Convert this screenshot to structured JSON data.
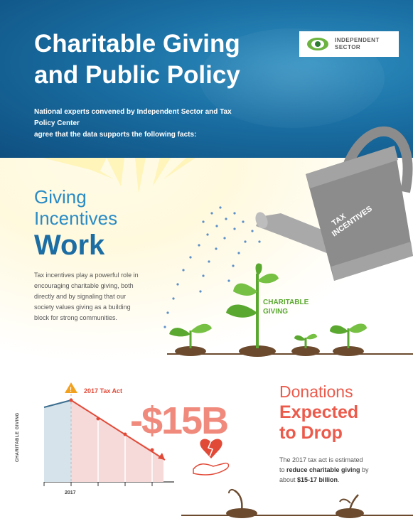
{
  "header": {
    "title_line1": "Charitable Giving",
    "title_line2": "and Public Policy",
    "intro_line1": "National experts convened by Independent Sector and Tax Policy Center",
    "intro_line2": "agree that the data supports the following facts:",
    "logo_line1": "INDEPENDENT",
    "logo_line2": "SECTOR"
  },
  "section1": {
    "heading_line1": "Giving",
    "heading_line2": "Incentives",
    "heading_emphasis": "Work",
    "body_line1": "Tax incentives play a powerful role in",
    "body_line2": "encouraging charitable giving, both",
    "body_line3": "directly and by signaling that our",
    "body_line4": "society values giving as a building",
    "body_line5": "block for strong communities.",
    "can_label_line1": "TAX",
    "can_label_line2": "INCENTIVES",
    "plant_label_line1": "CHARITABLE",
    "plant_label_line2": "GIVING"
  },
  "section2": {
    "marker_label": "2017 Tax Act",
    "warning_glyph": "!",
    "y_axis_label": "CHARITABLE GIVING",
    "x_axis_label": "2017",
    "big_number": "-$15B",
    "heading_line1": "Donations",
    "heading_line2": "Expected",
    "heading_line3": "to Drop",
    "body_line1": "The 2017 tax act is estimated",
    "body_pre": "to ",
    "body_bold1": "reduce charitable giving",
    "body_mid": " by",
    "body_line3_pre": "about ",
    "body_bold2": "$15-17 billion",
    "body_end": "."
  },
  "colors": {
    "header_blue": "#1a6fa3",
    "heading_blue": "#2a8bc4",
    "accent_red": "#ec5a4b",
    "leaf_green": "#5aa82f",
    "can_gray": "#8c8c8c"
  }
}
